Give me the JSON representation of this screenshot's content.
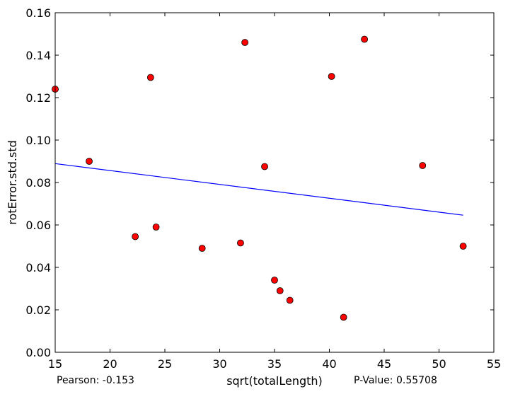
{
  "chart_data": {
    "type": "scatter",
    "xlabel": "sqrt(totalLength)",
    "ylabel": "rotError.std.std",
    "xlim": [
      15,
      55
    ],
    "ylim": [
      0.0,
      0.16
    ],
    "x_ticks": [
      "15",
      "20",
      "25",
      "30",
      "35",
      "40",
      "45",
      "50",
      "55"
    ],
    "y_ticks": [
      "0.00",
      "0.02",
      "0.04",
      "0.06",
      "0.08",
      "0.10",
      "0.12",
      "0.14",
      "0.16"
    ],
    "grid": false,
    "points": {
      "x": [
        15.0,
        18.1,
        22.3,
        23.7,
        24.2,
        28.4,
        31.9,
        32.3,
        34.1,
        35.0,
        35.5,
        36.4,
        40.2,
        41.3,
        43.2,
        48.5,
        52.2
      ],
      "y": [
        0.124,
        0.09,
        0.0545,
        0.1295,
        0.059,
        0.049,
        0.0515,
        0.146,
        0.0875,
        0.034,
        0.029,
        0.0245,
        0.13,
        0.0165,
        0.1475,
        0.088,
        0.05
      ],
      "color": "#ff0000",
      "edge_color": "#000000"
    },
    "fit_line": {
      "x": [
        15.0,
        52.2
      ],
      "y": [
        0.0889,
        0.0646
      ],
      "color": "#0000ff"
    },
    "annotations": {
      "pearson": "Pearson: -0.153",
      "p_value": "P-Value: 0.55708"
    }
  }
}
